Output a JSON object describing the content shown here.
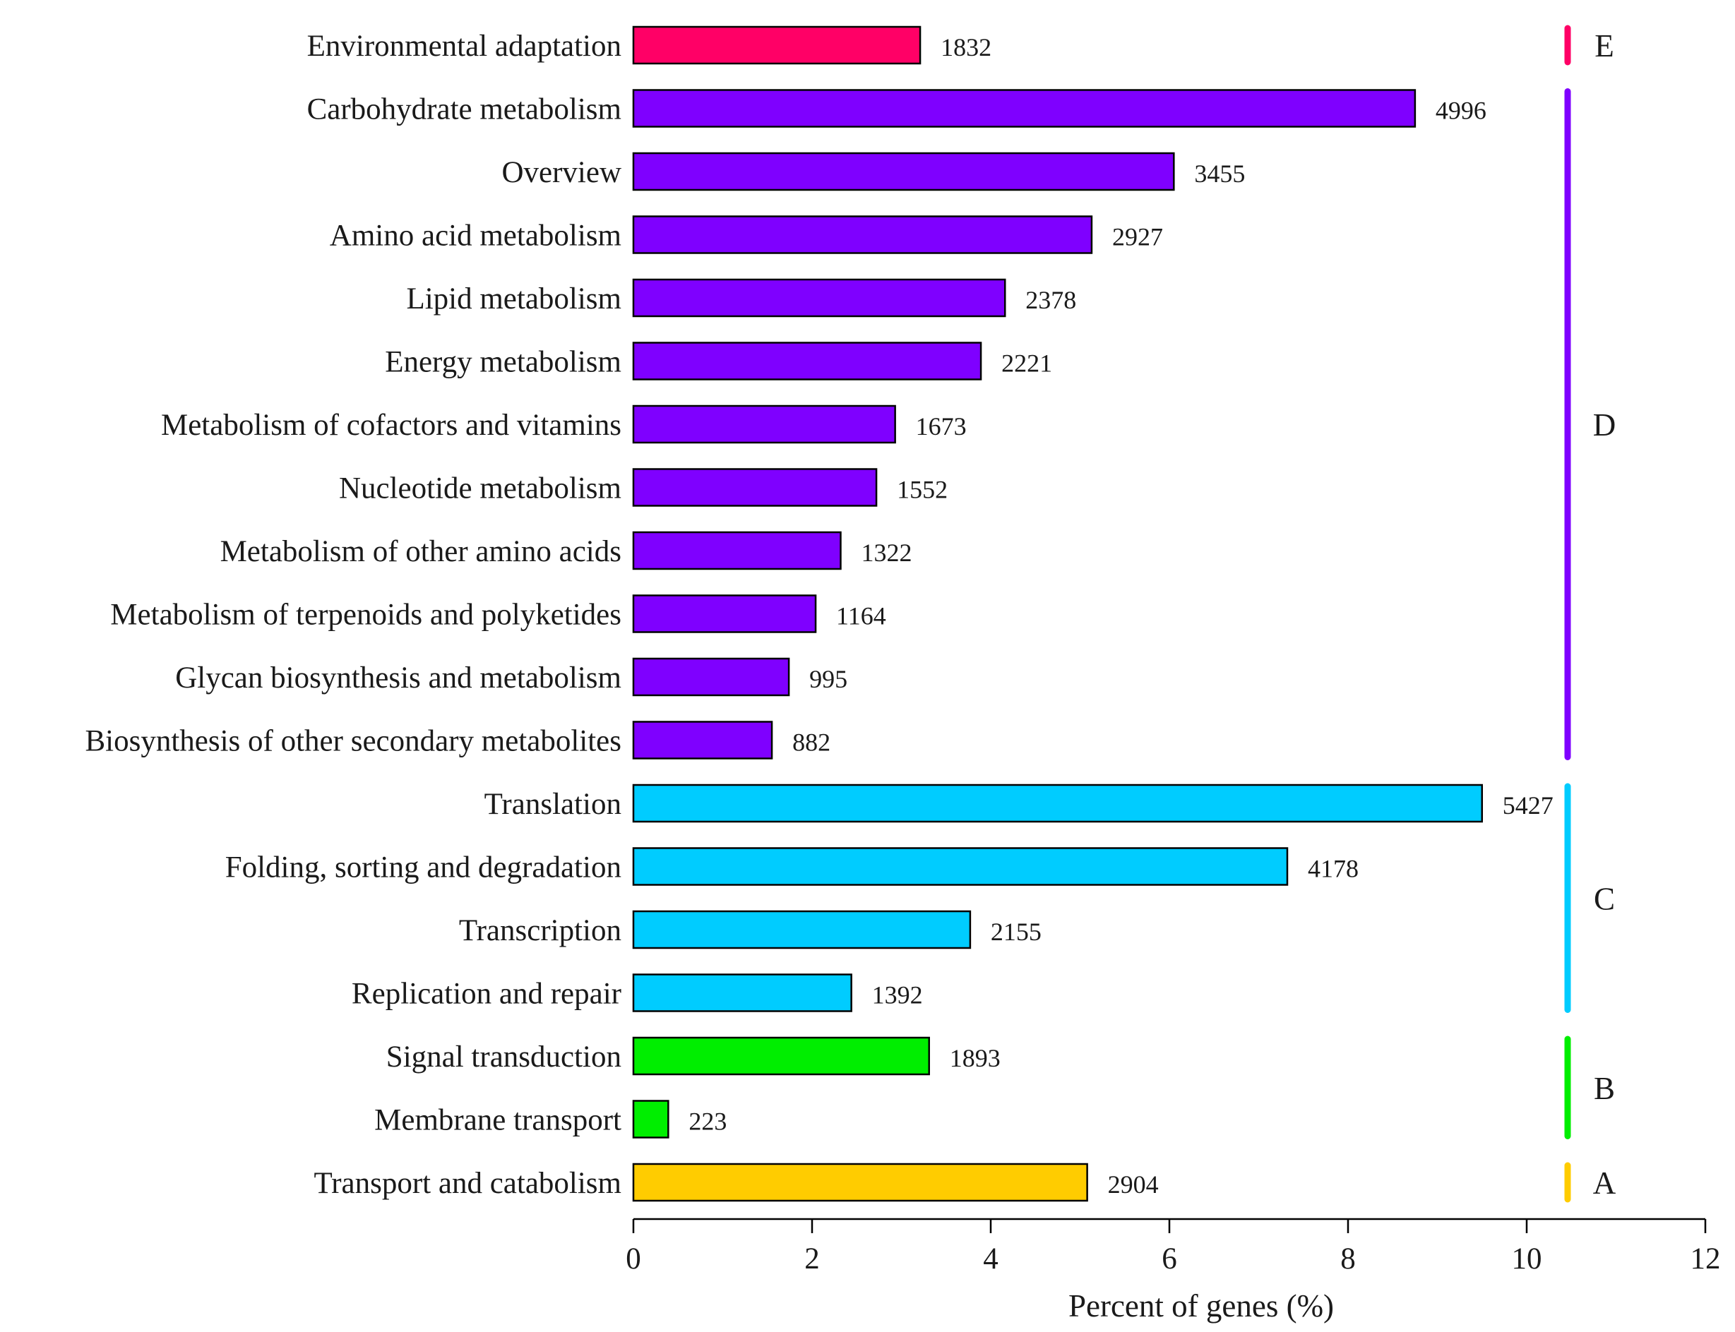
{
  "chart_data": {
    "type": "bar",
    "orientation": "horizontal",
    "title": "",
    "xlabel": "Percent of genes (%)",
    "ylabel": "",
    "xlim": [
      0,
      12
    ],
    "xticks": [
      0,
      2,
      4,
      6,
      8,
      10,
      12
    ],
    "categories": [
      "Environmental adaptation",
      "Carbohydrate metabolism",
      "Overview",
      "Amino acid metabolism",
      "Lipid metabolism",
      "Energy metabolism",
      "Metabolism of cofactors and vitamins",
      "Nucleotide metabolism",
      "Metabolism of other amino acids",
      "Metabolism of terpenoids and polyketides",
      "Glycan biosynthesis and metabolism",
      "Biosynthesis of other secondary metabolites",
      "Translation",
      "Folding, sorting and degradation",
      "Transcription",
      "Replication and repair",
      "Signal transduction",
      "Membrane transport",
      "Transport and catabolism"
    ],
    "values": [
      3.21,
      8.75,
      6.05,
      5.13,
      4.16,
      3.89,
      2.93,
      2.72,
      2.32,
      2.04,
      1.74,
      1.55,
      9.5,
      7.32,
      3.77,
      2.44,
      3.31,
      0.39,
      5.08
    ],
    "counts": [
      "1832",
      "4996",
      "3455",
      "2927",
      "2378",
      "2221",
      "1673",
      "1552",
      "1322",
      "1164",
      "995",
      "882",
      "5427",
      "4178",
      "2155",
      "1392",
      "1893",
      "223",
      "2904"
    ],
    "groups": [
      "E",
      "D",
      "D",
      "D",
      "D",
      "D",
      "D",
      "D",
      "D",
      "D",
      "D",
      "D",
      "C",
      "C",
      "C",
      "C",
      "B",
      "B",
      "A"
    ],
    "group_labels": [
      "E",
      "D",
      "C",
      "B",
      "A"
    ],
    "group_colors": {
      "E": "#ff0066",
      "D": "#7f00ff",
      "C": "#00ccff",
      "B": "#00ee00",
      "A": "#ffcc00"
    },
    "grid": false,
    "legend": "group brackets on right"
  }
}
